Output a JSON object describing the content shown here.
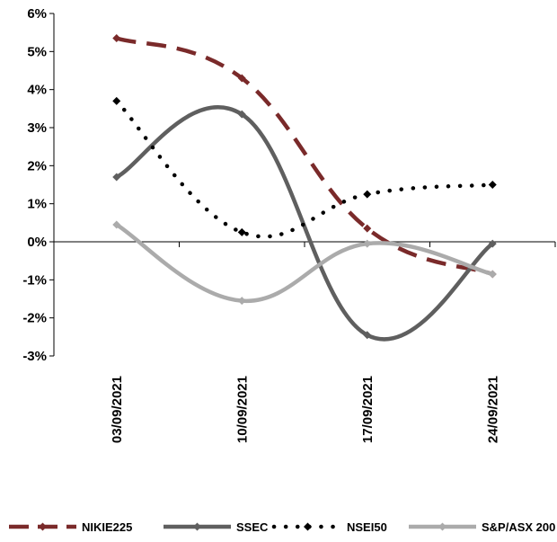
{
  "chart_data": {
    "type": "line",
    "title": "",
    "xlabel": "",
    "ylabel": "",
    "categories": [
      "03/09/2021",
      "10/09/2021",
      "17/09/2021",
      "24/09/2021"
    ],
    "ylim": [
      -3,
      6
    ],
    "yticks": [
      -3,
      -2,
      -1,
      0,
      1,
      2,
      3,
      4,
      5,
      6
    ],
    "ytick_labels": [
      "-3%",
      "-2%",
      "-1%",
      "0%",
      "1%",
      "2%",
      "3%",
      "4%",
      "5%",
      "6%"
    ],
    "grid": false,
    "legend_position": "bottom",
    "series": [
      {
        "name": "NIKIE225",
        "values": [
          5.35,
          4.3,
          0.35,
          -0.85
        ],
        "color": "#7a2a2a",
        "style": "dashed",
        "marker": "diamond"
      },
      {
        "name": "SSEC",
        "values": [
          1.7,
          3.35,
          -2.45,
          -0.05
        ],
        "color": "#5f5f5f",
        "style": "solid",
        "marker": "diamond"
      },
      {
        "name": "NSEI50",
        "values": [
          3.7,
          0.25,
          1.25,
          1.5
        ],
        "color": "#000000",
        "style": "dotted",
        "marker": "diamond"
      },
      {
        "name": "S&P/ASX 200",
        "values": [
          0.45,
          -1.55,
          -0.05,
          -0.85
        ],
        "color": "#ababab",
        "style": "solid",
        "marker": "diamond"
      }
    ]
  }
}
